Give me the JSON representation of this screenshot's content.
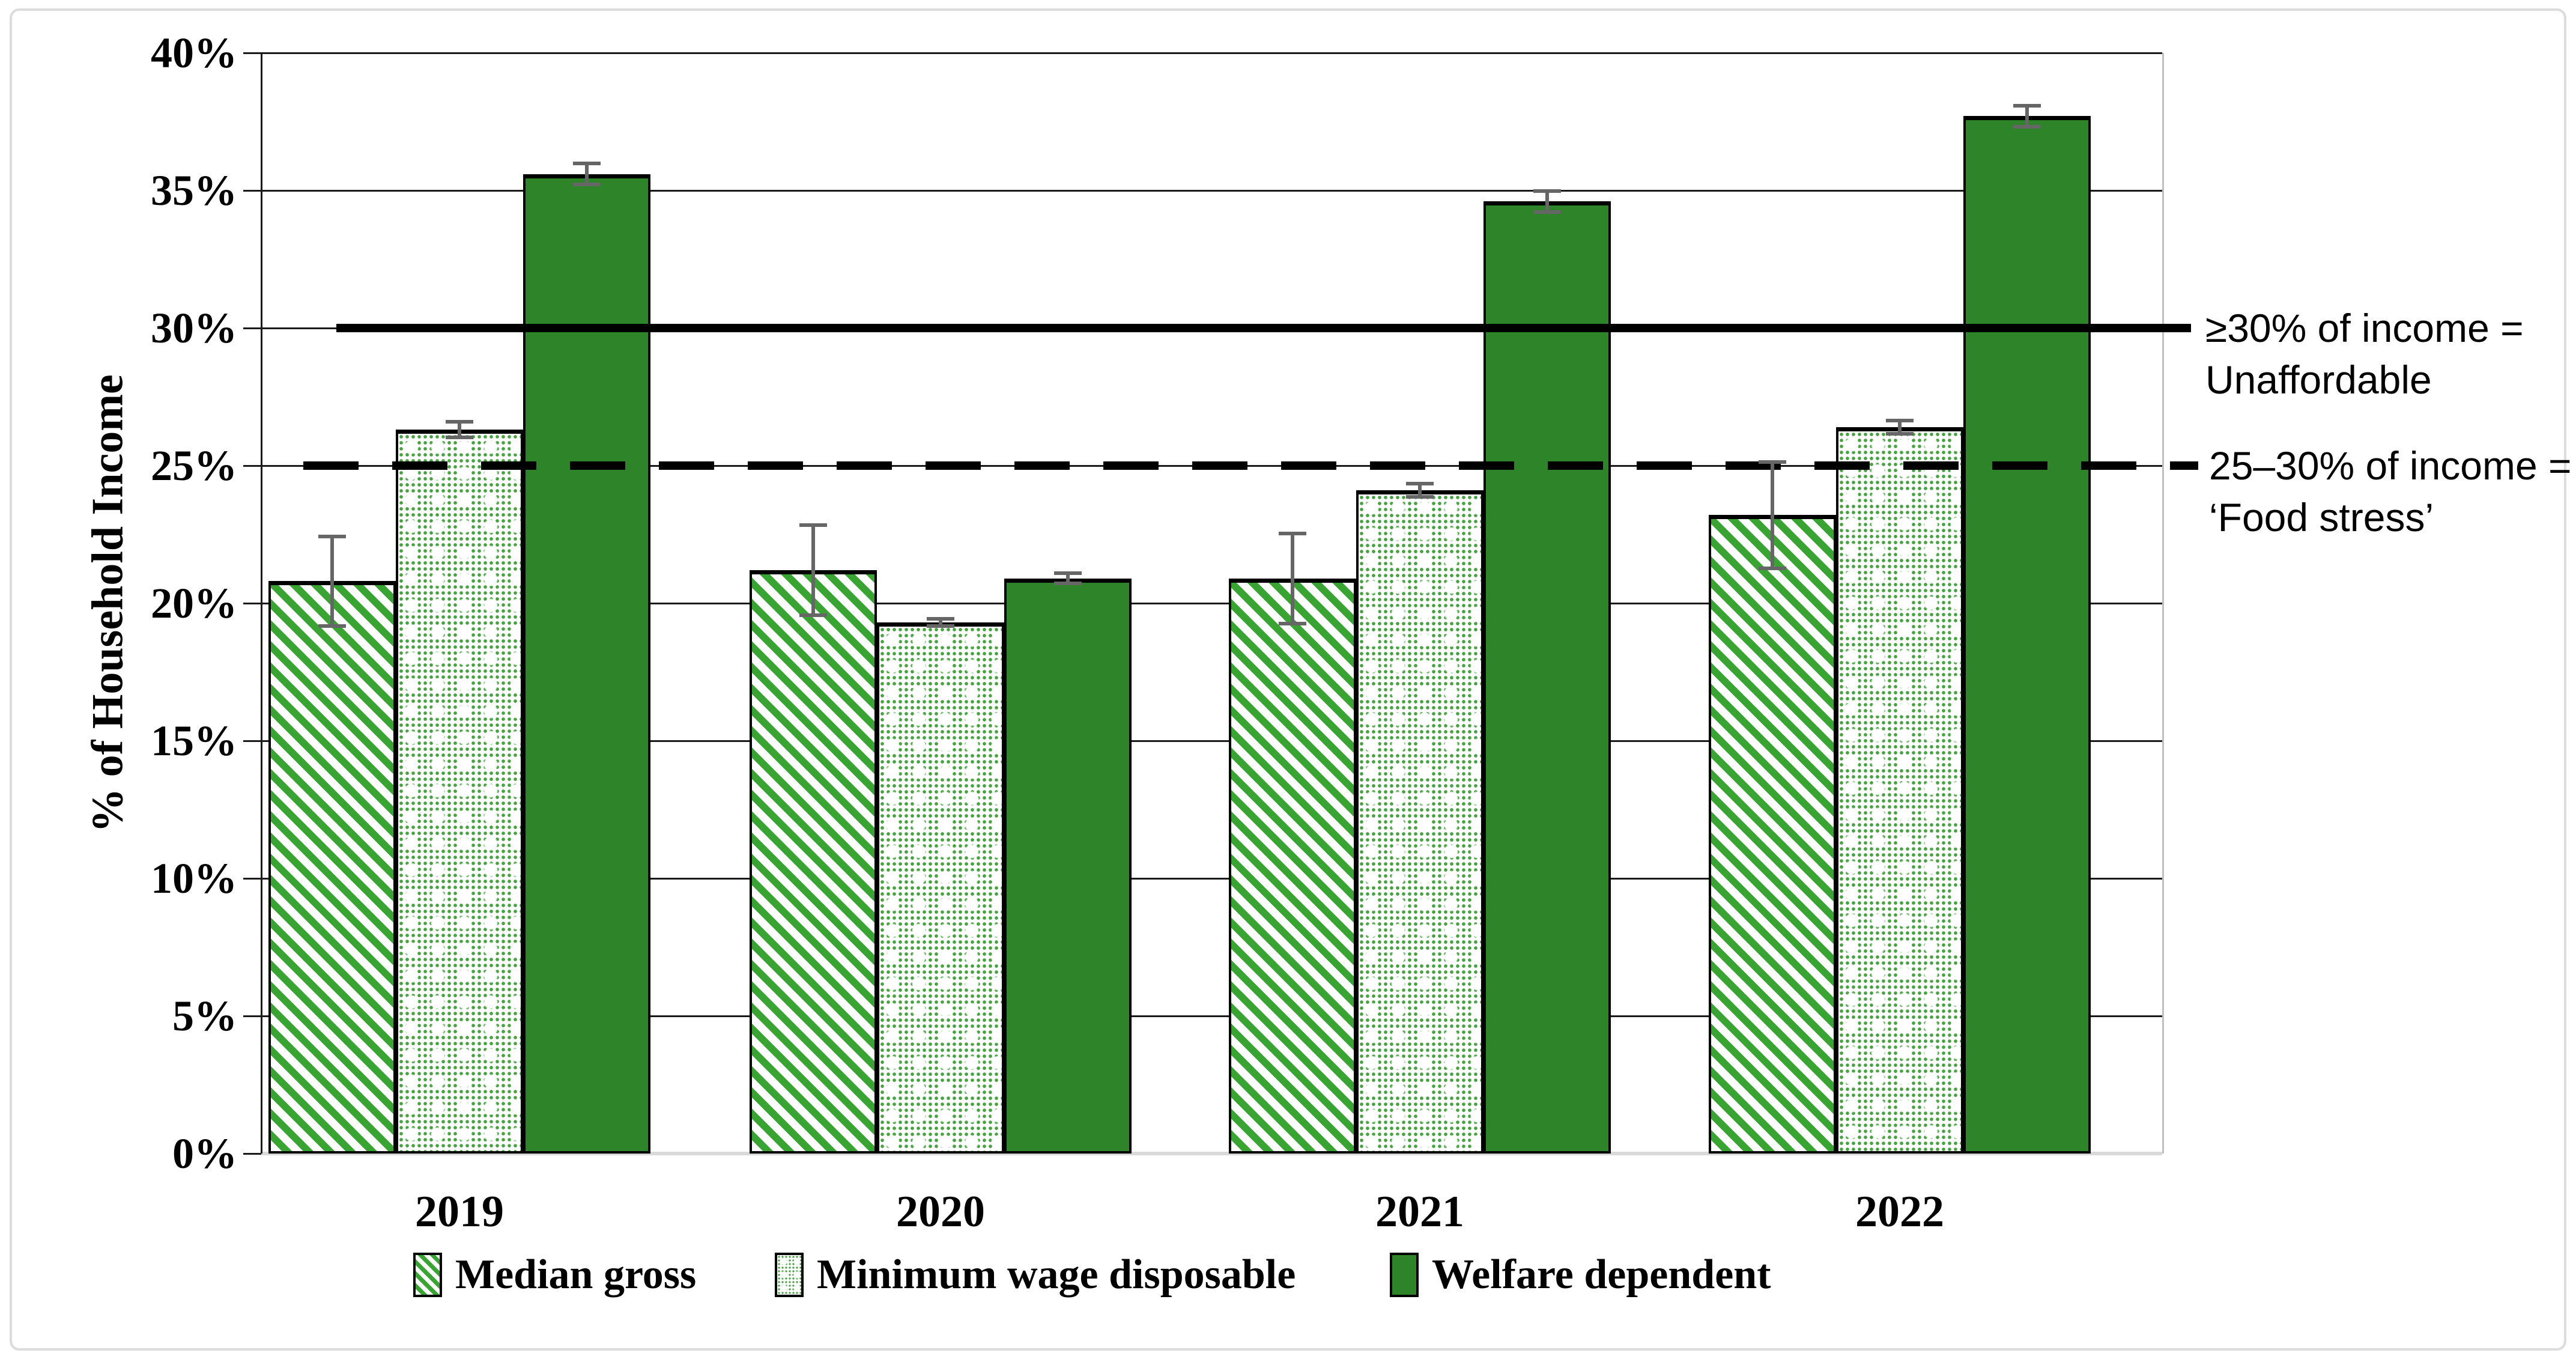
{
  "chart_data": {
    "type": "bar",
    "title": "",
    "xlabel": "",
    "ylabel": "% of Household Income",
    "ylim": [
      0,
      40
    ],
    "ytick_values": [
      0,
      5,
      10,
      15,
      20,
      25,
      30,
      35,
      40
    ],
    "yticks": [
      "0%",
      "5%",
      "10%",
      "15%",
      "20%",
      "25%",
      "30%",
      "35%",
      "40%"
    ],
    "grid": true,
    "legend_position": "bottom",
    "categories": [
      "2019",
      "2020",
      "2021",
      "2022"
    ],
    "series": [
      {
        "name": "Median gross",
        "pattern": "diagonal-hatch",
        "values": [
          20.8,
          21.2,
          20.9,
          23.2
        ],
        "errors": [
          1.7,
          1.7,
          1.7,
          2.0
        ]
      },
      {
        "name": "Minimum wage disposable",
        "pattern": "dot-grid",
        "values": [
          26.3,
          19.3,
          24.1,
          26.4
        ],
        "errors": [
          0.35,
          0.2,
          0.3,
          0.3
        ]
      },
      {
        "name": "Welfare dependent",
        "pattern": "solid",
        "values": [
          35.6,
          20.9,
          34.6,
          37.7
        ],
        "errors": [
          0.45,
          0.25,
          0.45,
          0.45
        ]
      }
    ],
    "reference_lines": [
      {
        "value": 30,
        "style": "solid",
        "label": [
          "≥30% of income =",
          "Unaffordable"
        ]
      },
      {
        "value": 25,
        "style": "dashed",
        "label": [
          "25–30% of income =",
          "‘Food stress’"
        ]
      }
    ],
    "colors": {
      "solid_green": "#2e8428",
      "hatch_green": "#38a532",
      "dot_green": "#46a340",
      "error_bar": "#666666",
      "gridline": "#1a1a1a",
      "baseline": "#d9d9d9"
    }
  }
}
